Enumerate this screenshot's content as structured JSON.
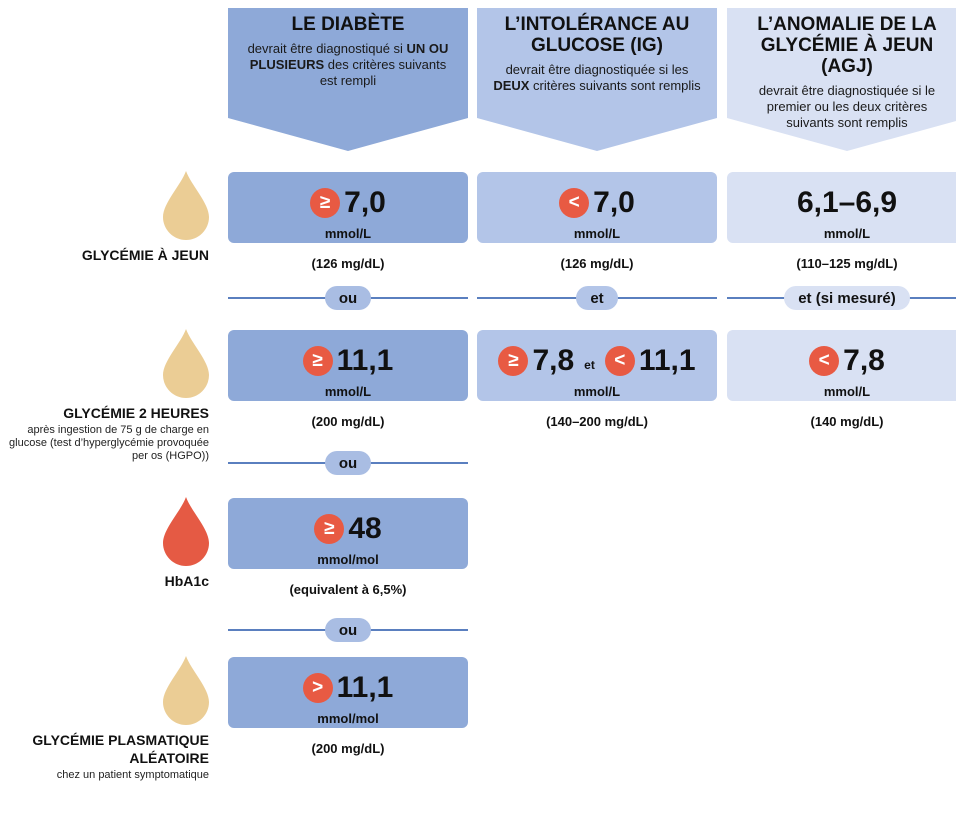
{
  "colors": [
    "#8ea9d8",
    "#b3c5e8",
    "#d9e1f3"
  ],
  "columns": [
    {
      "title": "LE DIABÈTE",
      "description": [
        {
          "text": "devrait être diagnostiqué si "
        },
        {
          "text": "UN OU PLUSIEURS",
          "bold": true
        },
        {
          "text": " des critères suivants est rempli"
        }
      ]
    },
    {
      "title": "L’INTOLÉRANCE AU GLUCOSE (IG)",
      "description": [
        {
          "text": "devrait être diagnostiquée si les "
        },
        {
          "text": "DEUX",
          "bold": true
        },
        {
          "text": " critères suivants sont remplis"
        }
      ]
    },
    {
      "title": "L’ANOMALIE DE LA GLYCÉMIE À JEUN (AGJ)",
      "description": [
        {
          "text": "devrait être diagnostiquée si le premier ou les deux critères suivants sont remplis"
        }
      ]
    }
  ],
  "criteria": [
    {
      "label": "GLYCÉMIE À JEUN",
      "drop_color": "#ebcd95",
      "cells": [
        {
          "values": [
            {
              "sign": "≥",
              "value": "7,0"
            }
          ],
          "unit": "mmol/L",
          "note": "(126 mg/dL)"
        },
        {
          "values": [
            {
              "sign": "<",
              "value": "7,0"
            }
          ],
          "unit": "mmol/L",
          "note": "(126 mg/dL)"
        },
        {
          "values": [
            {
              "value": "6,1–6,9"
            }
          ],
          "unit": "mmol/L",
          "note": "(110–125 mg/dL)"
        }
      ]
    },
    {
      "label": "GLYCÉMIE 2 HEURES",
      "sublabel": "après ingestion de 75 g de charge en glucose (test d’hyperglycémie provoquée per os (HGPO))",
      "drop_color": "#ebcd95",
      "cells": [
        {
          "values": [
            {
              "sign": "≥",
              "value": "11,1"
            }
          ],
          "unit": "mmol/L",
          "note": "(200 mg/dL)"
        },
        {
          "values": [
            {
              "sign": "≥",
              "value": "7,8"
            },
            {
              "sign": "<",
              "value": "11,1"
            }
          ],
          "joiner": "et",
          "unit": "mmol/L",
          "note": "(140–200 mg/dL)"
        },
        {
          "values": [
            {
              "sign": "<",
              "value": "7,8"
            }
          ],
          "unit": "mmol/L",
          "note": "(140 mg/dL)"
        }
      ]
    },
    {
      "label": "HbA1c",
      "drop_color": "#e55a44",
      "cells": [
        {
          "values": [
            {
              "sign": "≥",
              "value": "48"
            }
          ],
          "unit": "mmol/mol",
          "note": "(equivalent à 6,5%)"
        }
      ]
    },
    {
      "label": "GLYCÉMIE PLASMATIQUE ALÉATOIRE",
      "sublabel": "chez un patient symptomatique",
      "drop_color": "#ebcd95",
      "cells": [
        {
          "values": [
            {
              "sign": ">",
              "value": "11,1"
            }
          ],
          "unit": "mmol/mol",
          "note": "(200 mg/dL)"
        }
      ]
    }
  ],
  "separators": [
    {
      "labels": [
        "ou",
        "et",
        "et (si mesuré)"
      ]
    },
    {
      "labels": [
        "ou"
      ]
    },
    {
      "labels": [
        "ou"
      ]
    }
  ]
}
